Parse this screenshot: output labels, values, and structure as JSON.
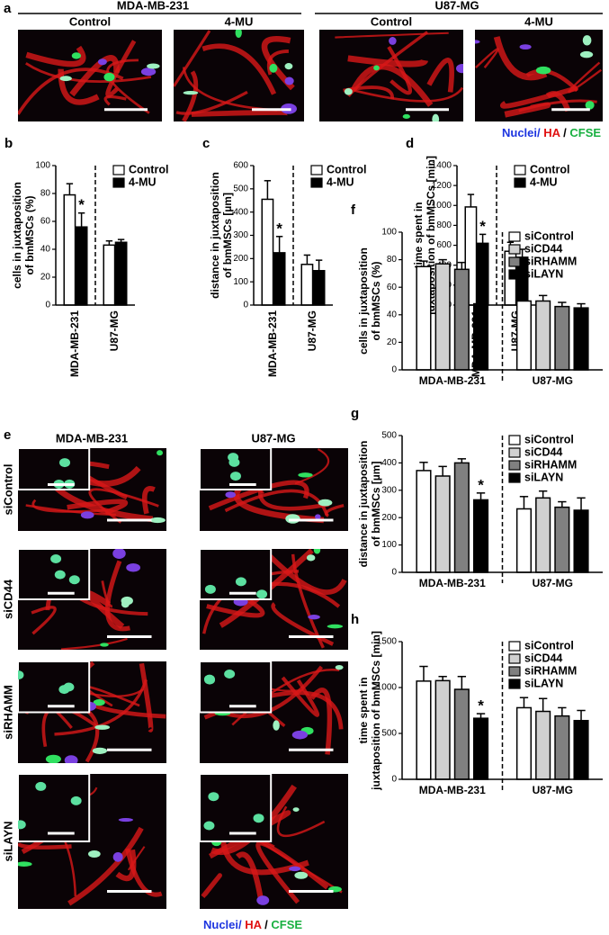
{
  "panel_a": {
    "label": "a",
    "groups": [
      "MDA-MB-231",
      "U87-MG"
    ],
    "images": [
      "Control",
      "4-MU",
      "Control",
      "4-MU"
    ],
    "caption": [
      "Nuclei/ ",
      "HA",
      " / ",
      "CFSE"
    ]
  },
  "panel_e": {
    "label": "e",
    "columns": [
      "MDA-MB-231",
      "U87-MG"
    ],
    "rows": [
      "siControl",
      "siCD44",
      "siRHAMM",
      "siLAYN"
    ],
    "caption": [
      "Nuclei/ ",
      "HA",
      " / ",
      "CFSE"
    ]
  },
  "chart_data": [
    {
      "type": "bar",
      "panel": "b",
      "ylabel": [
        "cells in juxtaposition",
        "of bmMSCs (%)"
      ],
      "categories": [
        "MDA-MB-231",
        "U87-MG"
      ],
      "series": [
        {
          "name": "Control",
          "color": "#ffffff",
          "values": [
            79,
            43
          ],
          "errors": [
            8,
            3
          ]
        },
        {
          "name": "4-MU",
          "color": "#000000",
          "values": [
            56,
            45
          ],
          "errors": [
            10,
            2
          ]
        }
      ],
      "ylim": [
        0,
        100
      ],
      "yticks": [
        0,
        20,
        40,
        60,
        80,
        100
      ],
      "legend": "upper right",
      "annotations": [
        {
          "text": "*",
          "series": "4-MU",
          "category": "MDA-MB-231"
        }
      ]
    },
    {
      "type": "bar",
      "panel": "c",
      "ylabel": [
        "distance in juxtaposition",
        "of bmMSCs [µm]"
      ],
      "categories": [
        "MDA-MB-231",
        "U87-MG"
      ],
      "series": [
        {
          "name": "Control",
          "color": "#ffffff",
          "values": [
            455,
            175
          ],
          "errors": [
            80,
            40
          ]
        },
        {
          "name": "4-MU",
          "color": "#000000",
          "values": [
            225,
            148
          ],
          "errors": [
            70,
            45
          ]
        }
      ],
      "ylim": [
        0,
        600
      ],
      "yticks": [
        0,
        100,
        200,
        300,
        400,
        500,
        600
      ],
      "legend": "upper right",
      "annotations": [
        {
          "text": "*",
          "series": "4-MU",
          "category": "MDA-MB-231"
        }
      ]
    },
    {
      "type": "bar",
      "panel": "d",
      "ylabel": [
        "time spent in",
        "juxtaposition of bmMSCs [min]"
      ],
      "categories": [
        "MDA-MB-231",
        "U87-MG"
      ],
      "series": [
        {
          "name": "Control",
          "color": "#ffffff",
          "values": [
            985,
            540
          ],
          "errors": [
            125,
            90
          ]
        },
        {
          "name": "4-MU",
          "color": "#000000",
          "values": [
            620,
            480
          ],
          "errors": [
            90,
            80
          ]
        }
      ],
      "ylim": [
        0,
        1400
      ],
      "yticks": [
        0,
        200,
        400,
        600,
        800,
        1000,
        1200,
        1400
      ],
      "legend": "upper right",
      "annotations": [
        {
          "text": "*",
          "series": "4-MU",
          "category": "MDA-MB-231"
        }
      ]
    },
    {
      "type": "bar",
      "panel": "f",
      "ylabel": [
        "cells in juxtaposition",
        "of bmMSCs (%)"
      ],
      "categories": [
        "MDA-MB-231",
        "U87-MG"
      ],
      "series": [
        {
          "name": "siControl",
          "color": "#ffffff",
          "values": [
            75,
            50
          ],
          "errors": [
            4,
            5
          ]
        },
        {
          "name": "siCD44",
          "color": "#d0d0d0",
          "values": [
            77,
            50
          ],
          "errors": [
            3,
            4
          ]
        },
        {
          "name": "siRHAMM",
          "color": "#808080",
          "values": [
            73,
            46
          ],
          "errors": [
            5,
            3
          ]
        },
        {
          "name": "siLAYN",
          "color": "#000000",
          "values": [
            48,
            45
          ],
          "errors": [
            7,
            3
          ]
        }
      ],
      "ylim": [
        0,
        100
      ],
      "yticks": [
        0,
        20,
        40,
        60,
        80,
        100
      ],
      "legend": "upper right",
      "annotations": [
        {
          "text": "*",
          "series": "siLAYN",
          "category": "MDA-MB-231"
        }
      ]
    },
    {
      "type": "bar",
      "panel": "g",
      "ylabel": [
        "distance in juxtaposition",
        "of bmMSCs [µm]"
      ],
      "categories": [
        "MDA-MB-231",
        "U87-MG"
      ],
      "series": [
        {
          "name": "siControl",
          "color": "#ffffff",
          "values": [
            372,
            232
          ],
          "errors": [
            30,
            45
          ]
        },
        {
          "name": "siCD44",
          "color": "#d0d0d0",
          "values": [
            352,
            272
          ],
          "errors": [
            35,
            25
          ]
        },
        {
          "name": "siRHAMM",
          "color": "#808080",
          "values": [
            400,
            238
          ],
          "errors": [
            15,
            20
          ]
        },
        {
          "name": "siLAYN",
          "color": "#000000",
          "values": [
            265,
            227
          ],
          "errors": [
            25,
            45
          ]
        }
      ],
      "ylim": [
        0,
        500
      ],
      "yticks": [
        0,
        100,
        200,
        300,
        400,
        500
      ],
      "legend": "upper right",
      "annotations": [
        {
          "text": "*",
          "series": "siLAYN",
          "category": "MDA-MB-231"
        }
      ]
    },
    {
      "type": "bar",
      "panel": "h",
      "ylabel": [
        "time spent in",
        "juxtaposition of bmMSCs [min]"
      ],
      "categories": [
        "MDA-MB-231",
        "U87-MG"
      ],
      "series": [
        {
          "name": "siControl",
          "color": "#ffffff",
          "values": [
            1070,
            780
          ],
          "errors": [
            160,
            110
          ]
        },
        {
          "name": "siCD44",
          "color": "#d0d0d0",
          "values": [
            1075,
            740
          ],
          "errors": [
            45,
            140
          ]
        },
        {
          "name": "siRHAMM",
          "color": "#808080",
          "values": [
            980,
            690
          ],
          "errors": [
            140,
            90
          ]
        },
        {
          "name": "siLAYN",
          "color": "#000000",
          "values": [
            665,
            640
          ],
          "errors": [
            50,
            110
          ]
        }
      ],
      "ylim": [
        0,
        1500
      ],
      "yticks": [
        0,
        500,
        1000,
        1500
      ],
      "legend": "upper right",
      "annotations": [
        {
          "text": "*",
          "series": "siLAYN",
          "category": "MDA-MB-231"
        }
      ]
    }
  ]
}
